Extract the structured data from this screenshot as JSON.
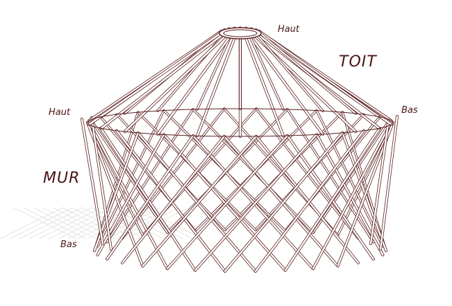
{
  "labels": {
    "roof": "TOIT",
    "wall": "MUR",
    "roof_top": "Haut",
    "roof_bottom": "Bas",
    "wall_top": "Haut",
    "wall_bottom": "Bas"
  },
  "colors": {
    "stroke": "#5a1e1e",
    "pole_fill": "#ffffff",
    "shadow": "#e4e4e4",
    "text": "#4a1414"
  }
}
